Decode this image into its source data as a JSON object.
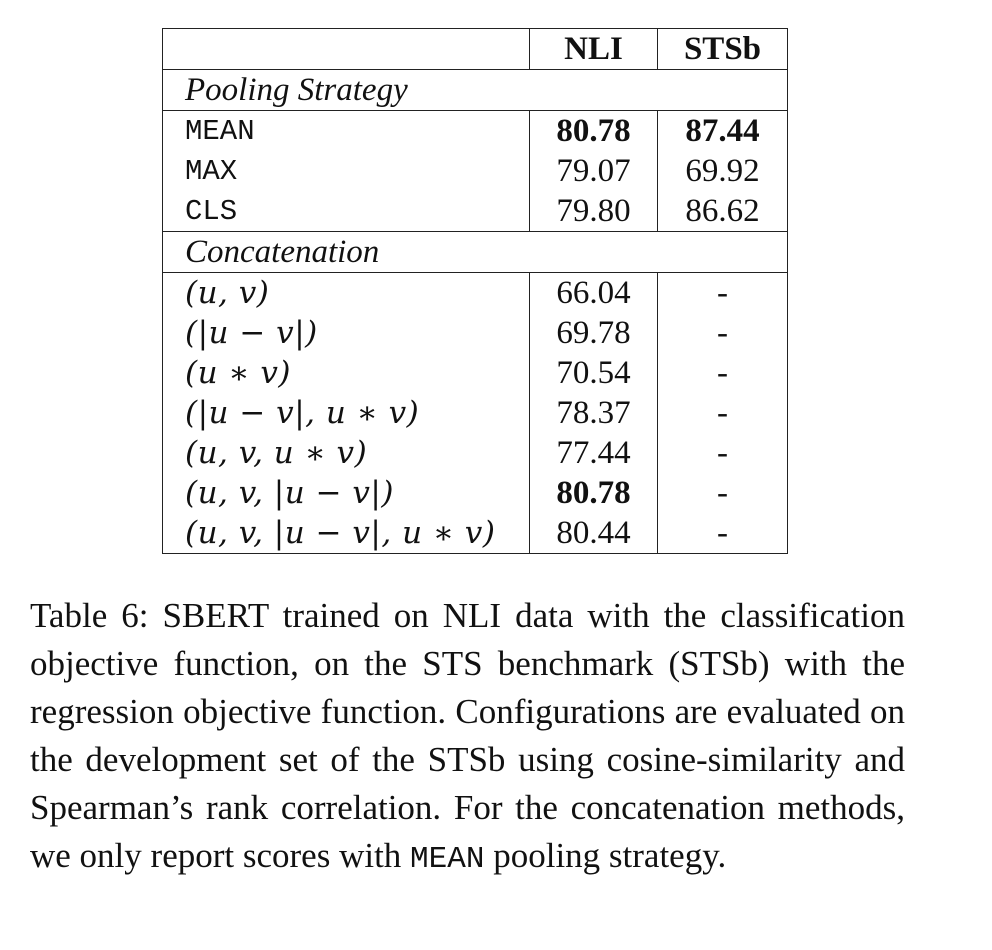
{
  "table": {
    "headers": [
      "",
      "NLI",
      "STSb"
    ],
    "sections": [
      {
        "title": "Pooling Strategy",
        "rows": [
          {
            "label": "MEAN",
            "nli": "80.78",
            "sts": "87.44"
          },
          {
            "label": "MAX",
            "nli": "79.07",
            "sts": "69.92"
          },
          {
            "label": "CLS",
            "nli": "79.80",
            "sts": "86.62"
          }
        ]
      },
      {
        "title": "Concatenation",
        "rows": [
          {
            "label": "(u, v)",
            "nli": "66.04",
            "sts": "-"
          },
          {
            "label": "(|u − v|)",
            "nli": "69.78",
            "sts": "-"
          },
          {
            "label": "(u ∗ v)",
            "nli": "70.54",
            "sts": "-"
          },
          {
            "label": "(|u − v|, u ∗ v)",
            "nli": "78.37",
            "sts": "-"
          },
          {
            "label": "(u, v, u ∗ v)",
            "nli": "77.44",
            "sts": "-"
          },
          {
            "label": "(u, v, |u − v|)",
            "nli": "80.78",
            "sts": "-"
          },
          {
            "label": "(u, v, |u − v|, u ∗ v)",
            "nli": "80.44",
            "sts": "-"
          }
        ]
      }
    ]
  },
  "caption": {
    "part1": "Table 6:  SBERT trained on NLI data with the classification objective function, on the STS benchmark (STSb) with the regression objective function.  Configurations are evaluated on the development set of the STSb using cosine-similarity and Spearman’s rank correlation. For the concatenation methods, we only report scores with ",
    "code": "MEAN",
    "part2": " pooling strategy."
  }
}
